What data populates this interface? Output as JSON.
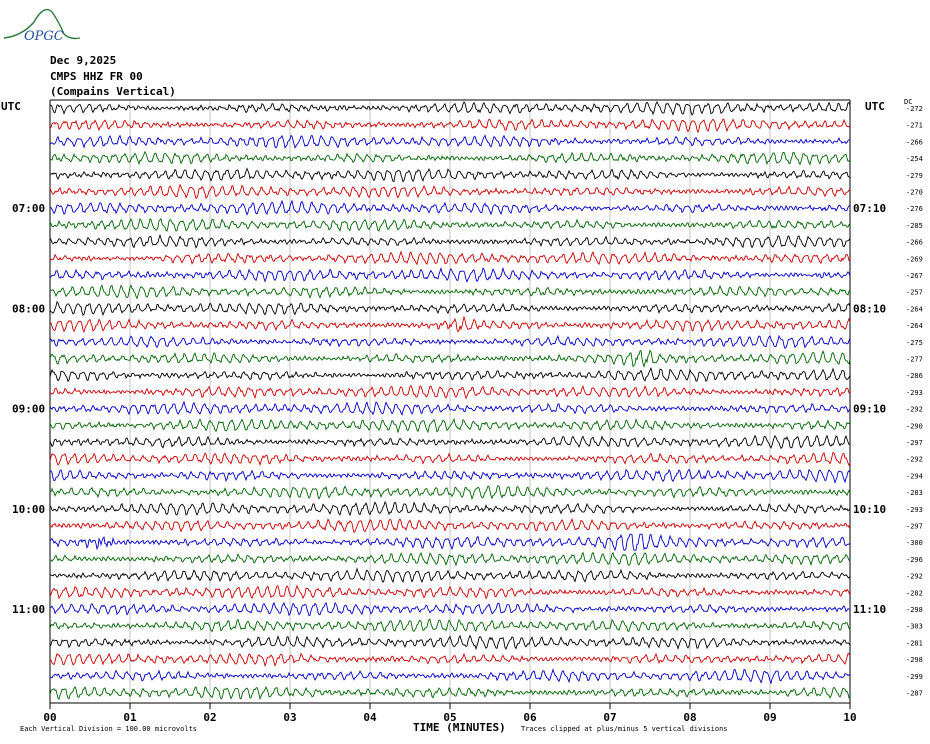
{
  "header": {
    "date": "Dec 9,2025",
    "station": "CMPS HHZ FR 00",
    "site": "(Compains Vertical)",
    "logo_text": "OPGC"
  },
  "left_axis_label": "UTC",
  "right_axis_label": "UTC",
  "dc_label": "DC",
  "footer": {
    "scale": "Each Vertical Division =  100.00 microvolts",
    "clip": "Traces clipped at plus/minus 5 vertical divisions",
    "xlabel": "TIME (MINUTES)"
  },
  "colors": {
    "trace_cycle": [
      "#000000",
      "#cc0000",
      "#0000cc",
      "#006600"
    ],
    "logo": "#2a7a3a",
    "logo_text": "#1f4fa0"
  },
  "chart_data": {
    "type": "line",
    "chart_kind": "helicorder seismogram",
    "x_ticks": [
      "00",
      "01",
      "02",
      "03",
      "04",
      "05",
      "06",
      "07",
      "08",
      "09",
      "10"
    ],
    "xlim": [
      0,
      10
    ],
    "xlabel": "TIME (MINUTES)",
    "row_count": 36,
    "left_hour_labels": [
      {
        "row": 6,
        "label": "07:00"
      },
      {
        "row": 12,
        "label": "08:00"
      },
      {
        "row": 18,
        "label": "09:00"
      },
      {
        "row": 24,
        "label": "10:00"
      },
      {
        "row": 30,
        "label": "11:00"
      }
    ],
    "right_hour_labels": [
      {
        "row": 6,
        "label": "07:10"
      },
      {
        "row": 12,
        "label": "08:10"
      },
      {
        "row": 18,
        "label": "09:10"
      },
      {
        "row": 24,
        "label": "10:10"
      },
      {
        "row": 30,
        "label": "11:10"
      }
    ],
    "dc_offsets": [
      -272,
      -271,
      -266,
      -254,
      -279,
      -270,
      -276,
      -285,
      -266,
      -269,
      -267,
      -257,
      -264,
      -264,
      -275,
      -277,
      -286,
      -293,
      -292,
      -290,
      -297,
      -292,
      -294,
      -283,
      -293,
      -297,
      -300,
      -296,
      -292,
      -282,
      -298,
      -303,
      -281,
      -298,
      -299,
      -287
    ],
    "bursts": [
      {
        "row": 26,
        "minute": 0.6,
        "strength": 1.5
      },
      {
        "row": 26,
        "minute": 7.3,
        "strength": 1.4
      },
      {
        "row": 13,
        "minute": 5.1,
        "strength": 1.2
      },
      {
        "row": 15,
        "minute": 7.4,
        "strength": 1.1
      }
    ]
  }
}
